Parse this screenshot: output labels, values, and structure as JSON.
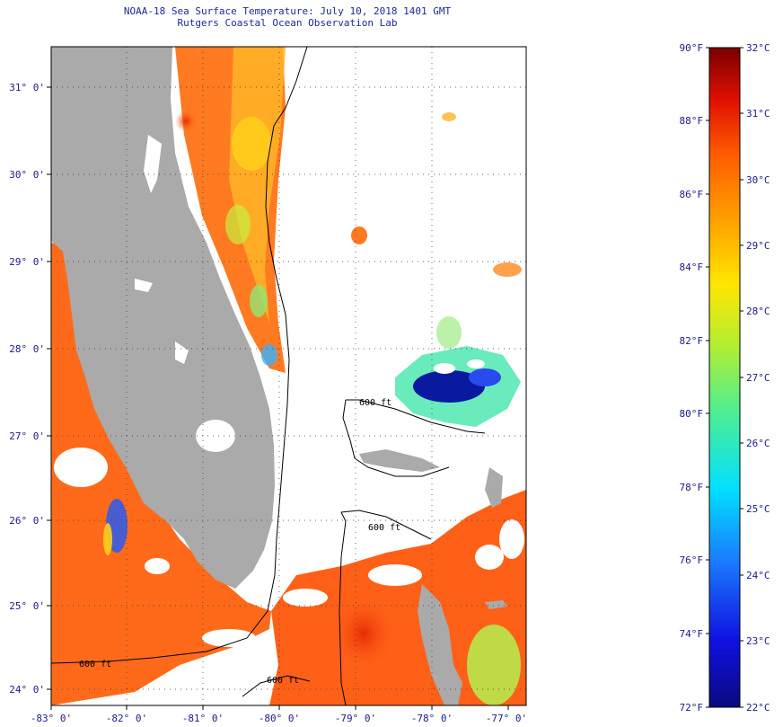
{
  "header": {
    "title": "NOAA-18 Sea Surface Temperature:  July 10, 2018 1401 GMT",
    "subtitle": "Rutgers Coastal Ocean Observation Lab"
  },
  "map": {
    "lat_labels": [
      "31° 0'",
      "30° 0'",
      "29° 0'",
      "28° 0'",
      "27° 0'",
      "26° 0'",
      "25° 0'",
      "24° 0'"
    ],
    "lon_labels": [
      "-83° 0'",
      "-82° 0'",
      "-81° 0'",
      "-80° 0'",
      "-79° 0'",
      "-78° 0'",
      "-77° 0'"
    ],
    "contour_label": "600 ft",
    "colors": {
      "land": "#aaaaaa",
      "cloud": "#ffffff",
      "warm": "#ff6a1a",
      "cool": "#0a1aa0"
    }
  },
  "colorbar": {
    "f_labels": [
      "90°F",
      "88°F",
      "86°F",
      "84°F",
      "82°F",
      "80°F",
      "78°F",
      "76°F",
      "74°F",
      "72°F"
    ],
    "c_labels": [
      "32°C",
      "31°C",
      "30°C",
      "29°C",
      "28°C",
      "27°C",
      "26°C",
      "25°C",
      "24°C",
      "23°C",
      "22°C"
    ]
  }
}
